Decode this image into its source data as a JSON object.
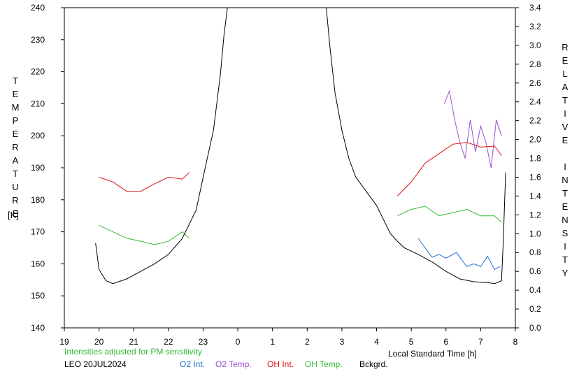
{
  "chart_data": {
    "type": "line",
    "title": "",
    "xlabel": "Local Standard Time [h]",
    "ylabel_left": "TEMPERATURE",
    "ylabel_left_unit": "[K]",
    "ylabel_right": "RELATIVE INTENSITY",
    "x_tick_labels": [
      "19",
      "20",
      "21",
      "22",
      "23",
      "0",
      "1",
      "2",
      "3",
      "4",
      "5",
      "6",
      "7",
      "8"
    ],
    "xlim": [
      19,
      32
    ],
    "ylim_left": [
      140,
      240
    ],
    "y_left_ticks": [
      140,
      150,
      160,
      170,
      180,
      190,
      200,
      210,
      220,
      230,
      240
    ],
    "ylim_right": [
      0.0,
      3.4
    ],
    "y_right_ticks": [
      "0.0",
      "0.2",
      "0.4",
      "0.6",
      "0.8",
      "1.0",
      "1.2",
      "1.4",
      "1.6",
      "1.8",
      "2.0",
      "2.2",
      "2.4",
      "2.6",
      "2.8",
      "3.0",
      "3.2",
      "3.4"
    ],
    "grid": false,
    "note": "Intensities adjusted for PM sensitivity",
    "station": "LEO 20JUL2024",
    "legend_placement": "bottom",
    "series": [
      {
        "name": "O2 Int.",
        "color": "#1f6fd6",
        "axis": "right",
        "x": [
          29.2,
          29.4,
          29.6,
          29.8,
          30.0,
          30.3,
          30.6,
          30.8,
          31.0,
          31.2,
          31.4,
          31.55
        ],
        "values": [
          0.95,
          0.85,
          0.75,
          0.78,
          0.74,
          0.8,
          0.65,
          0.68,
          0.65,
          0.76,
          0.62,
          0.65
        ]
      },
      {
        "name": "O2 Temp.",
        "color": "#9b4fd0",
        "axis": "left",
        "x": [
          29.95,
          30.1,
          30.25,
          30.4,
          30.55,
          30.7,
          30.85,
          31.0,
          31.15,
          31.3,
          31.45,
          31.6
        ],
        "values": [
          210,
          214,
          205,
          198,
          193,
          205,
          195,
          203,
          198,
          190,
          205,
          200
        ]
      },
      {
        "name": "OH Int.",
        "color": "#dd1111",
        "axis": "right",
        "x": [
          20.0,
          20.4,
          20.8,
          21.2,
          21.6,
          22.0,
          22.4,
          22.6,
          28.6,
          29.0,
          29.4,
          29.8,
          30.2,
          30.6,
          31.0,
          31.4,
          31.6
        ],
        "values": [
          1.6,
          1.55,
          1.45,
          1.45,
          1.53,
          1.6,
          1.58,
          1.65,
          1.4,
          1.55,
          1.75,
          1.85,
          1.95,
          1.97,
          1.92,
          1.93,
          1.83
        ]
      },
      {
        "name": "OH Temp.",
        "color": "#33bb33",
        "axis": "left",
        "x": [
          20.0,
          20.4,
          20.8,
          21.2,
          21.6,
          22.0,
          22.4,
          22.6,
          28.6,
          29.0,
          29.4,
          29.8,
          30.2,
          30.6,
          31.0,
          31.4,
          31.6
        ],
        "values": [
          172,
          170,
          168,
          167,
          166,
          167,
          170,
          168,
          175,
          177,
          178,
          175,
          176,
          177,
          175,
          175,
          173
        ]
      },
      {
        "name": "Bckgrd.",
        "color": "#000000",
        "axis": "right",
        "x": [
          19.9,
          20.0,
          20.2,
          20.4,
          20.8,
          21.2,
          21.6,
          22.0,
          22.4,
          22.8,
          23.0,
          23.3,
          23.5,
          23.6,
          23.7,
          26.55,
          26.65,
          26.8,
          27.0,
          27.2,
          27.4,
          27.6,
          28.0,
          28.4,
          28.6,
          28.8,
          29.2,
          29.6,
          30.0,
          30.4,
          30.8,
          31.2,
          31.4,
          31.6,
          31.65,
          31.72
        ],
        "values": [
          0.9,
          0.62,
          0.5,
          0.47,
          0.52,
          0.6,
          0.68,
          0.78,
          0.95,
          1.25,
          1.6,
          2.1,
          2.7,
          3.1,
          3.4,
          3.4,
          3.0,
          2.5,
          2.1,
          1.8,
          1.6,
          1.5,
          1.3,
          1.0,
          0.92,
          0.85,
          0.78,
          0.7,
          0.6,
          0.52,
          0.49,
          0.48,
          0.47,
          0.5,
          0.9,
          1.65
        ]
      }
    ]
  }
}
